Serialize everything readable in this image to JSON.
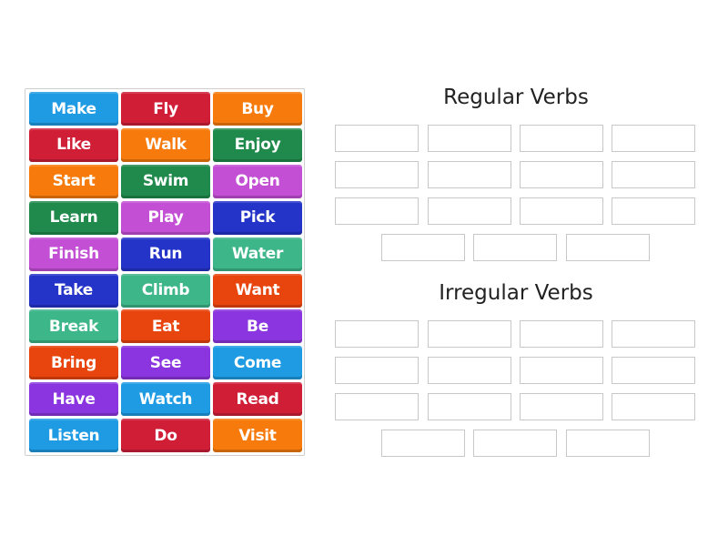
{
  "tiles": [
    {
      "label": "Make",
      "color": "#1f9be4"
    },
    {
      "label": "Fly",
      "color": "#d01e37"
    },
    {
      "label": "Buy",
      "color": "#f77b0c"
    },
    {
      "label": "Like",
      "color": "#d01e37"
    },
    {
      "label": "Walk",
      "color": "#f77b0c"
    },
    {
      "label": "Enjoy",
      "color": "#1f8a4c"
    },
    {
      "label": "Start",
      "color": "#f77b0c"
    },
    {
      "label": "Swim",
      "color": "#1f8a4c"
    },
    {
      "label": "Open",
      "color": "#c34fd5"
    },
    {
      "label": "Learn",
      "color": "#1f8a4c"
    },
    {
      "label": "Play",
      "color": "#c34fd5"
    },
    {
      "label": "Pick",
      "color": "#2434c8"
    },
    {
      "label": "Finish",
      "color": "#c34fd5"
    },
    {
      "label": "Run",
      "color": "#2434c8"
    },
    {
      "label": "Water",
      "color": "#3db68a"
    },
    {
      "label": "Take",
      "color": "#2434c8"
    },
    {
      "label": "Climb",
      "color": "#3db68a"
    },
    {
      "label": "Want",
      "color": "#e8450e"
    },
    {
      "label": "Break",
      "color": "#3db68a"
    },
    {
      "label": "Eat",
      "color": "#e8450e"
    },
    {
      "label": "Be",
      "color": "#8a35df"
    },
    {
      "label": "Bring",
      "color": "#e8450e"
    },
    {
      "label": "See",
      "color": "#8a35df"
    },
    {
      "label": "Come",
      "color": "#1f9be4"
    },
    {
      "label": "Have",
      "color": "#8a35df"
    },
    {
      "label": "Watch",
      "color": "#1f9be4"
    },
    {
      "label": "Read",
      "color": "#d01e37"
    },
    {
      "label": "Listen",
      "color": "#1f9be4"
    },
    {
      "label": "Do",
      "color": "#d01e37"
    },
    {
      "label": "Visit",
      "color": "#f77b0c"
    }
  ],
  "groups": [
    {
      "title": "Regular Verbs",
      "slot_count": 15
    },
    {
      "title": "Irregular Verbs",
      "slot_count": 15
    }
  ]
}
